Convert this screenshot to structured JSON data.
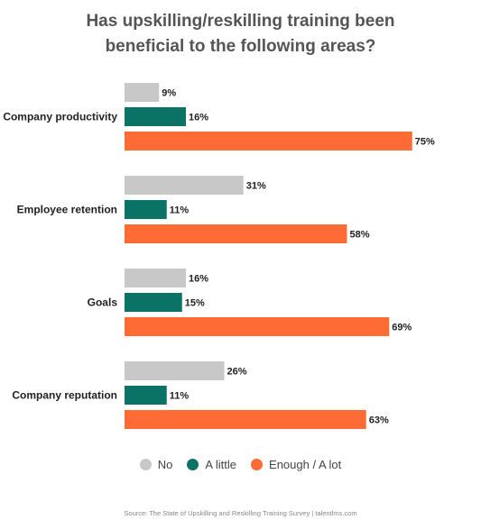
{
  "chart_data": {
    "type": "bar",
    "orientation": "horizontal",
    "title_lines": [
      "Has upskilling/reskilling training been",
      "beneficial to the following areas?"
    ],
    "categories": [
      "Company productivity",
      "Employee retention",
      "Goals",
      "Company reputation"
    ],
    "series": [
      {
        "name": "No",
        "color": "#c8c8c8",
        "values": [
          9,
          31,
          16,
          26
        ]
      },
      {
        "name": "A little",
        "color": "#0b7365",
        "values": [
          16,
          11,
          15,
          11
        ]
      },
      {
        "name": "Enough / A lot",
        "color": "#ff6b35",
        "values": [
          75,
          58,
          69,
          63
        ]
      }
    ],
    "value_suffix": "%",
    "xlim": [
      0,
      100
    ],
    "grid": false,
    "legend_position": "bottom"
  },
  "source": "Source: The State of Upskilling and Reskilling Training Survey  |  talentlms.com"
}
